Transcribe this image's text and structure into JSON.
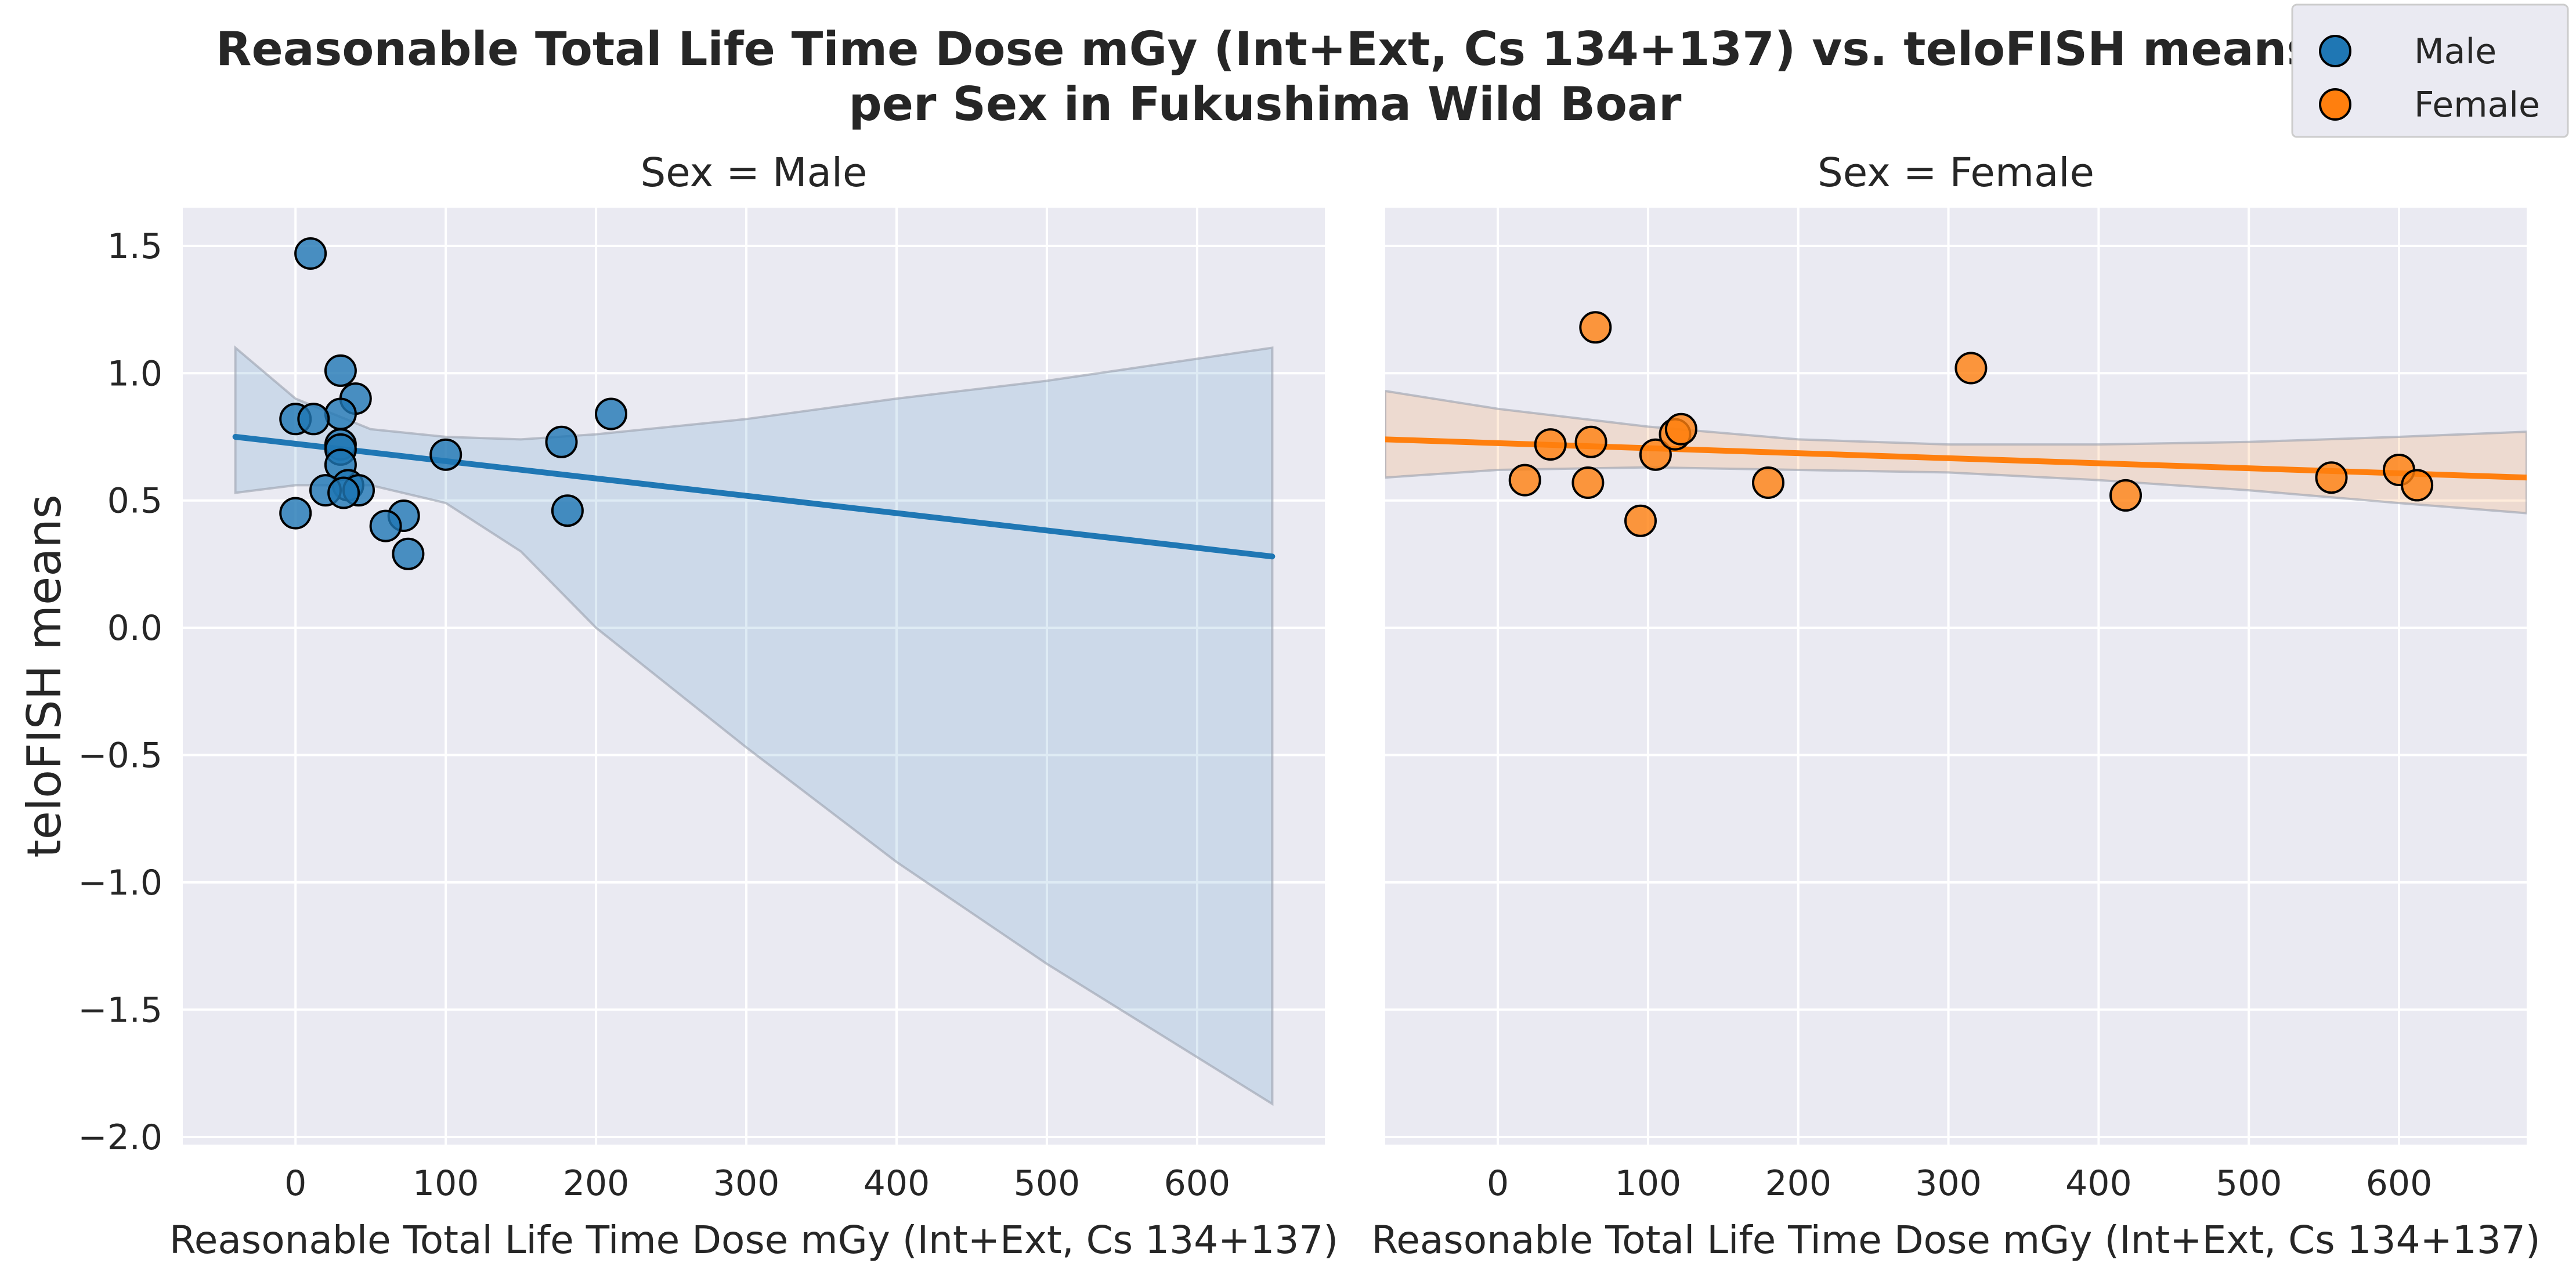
{
  "figure": {
    "title_lines": [
      "Reasonable Total Life Time Dose mGy (Int+Ext, Cs 134+137) vs. teloFISH means",
      "per Sex in Fukushima Wild Boar"
    ],
    "legend": [
      {
        "label": "Male",
        "color": "#1f77b4"
      },
      {
        "label": "Female",
        "color": "#ff7f0e"
      }
    ]
  },
  "chart_data": [
    {
      "type": "scatter",
      "title": "Sex = Male",
      "xlabel": "Reasonable Total Life Time Dose mGy (Int+Ext, Cs 134+137)",
      "ylabel": "teloFISH means",
      "xlim": [
        -75,
        685
      ],
      "ylim": [
        -2.03,
        1.65
      ],
      "xticks": [
        0,
        100,
        200,
        300,
        400,
        500,
        600
      ],
      "yticks": [
        1.5,
        1.0,
        0.5,
        0.0,
        -0.5,
        -1.0,
        -1.5,
        -2.0
      ],
      "ytick_labels": [
        "1.5",
        "1.0",
        "0.5",
        "0.0",
        "−0.5",
        "−1.0",
        "−1.5",
        "−2.0"
      ],
      "grid": true,
      "color": "#1f77b4",
      "points": [
        {
          "x": 10,
          "y": 1.47
        },
        {
          "x": 30,
          "y": 1.01
        },
        {
          "x": 40,
          "y": 0.9
        },
        {
          "x": 30,
          "y": 0.84
        },
        {
          "x": 0,
          "y": 0.82
        },
        {
          "x": 12,
          "y": 0.82
        },
        {
          "x": 30,
          "y": 0.72
        },
        {
          "x": 30,
          "y": 0.7
        },
        {
          "x": 30,
          "y": 0.64
        },
        {
          "x": 35,
          "y": 0.56
        },
        {
          "x": 20,
          "y": 0.54
        },
        {
          "x": 42,
          "y": 0.54
        },
        {
          "x": 32,
          "y": 0.53
        },
        {
          "x": 0,
          "y": 0.45
        },
        {
          "x": 72,
          "y": 0.44
        },
        {
          "x": 60,
          "y": 0.4
        },
        {
          "x": 75,
          "y": 0.29
        },
        {
          "x": 100,
          "y": 0.68
        },
        {
          "x": 177,
          "y": 0.73
        },
        {
          "x": 210,
          "y": 0.84
        },
        {
          "x": 181,
          "y": 0.46
        }
      ],
      "regression": {
        "x": [
          -40,
          650
        ],
        "y": [
          0.75,
          0.28
        ]
      },
      "ci_band": {
        "x": [
          -40,
          0,
          50,
          100,
          150,
          200,
          300,
          400,
          500,
          650
        ],
        "upper": [
          1.1,
          0.9,
          0.78,
          0.75,
          0.74,
          0.76,
          0.82,
          0.9,
          0.97,
          1.1
        ],
        "lower": [
          0.53,
          0.56,
          0.56,
          0.49,
          0.3,
          0.0,
          -0.47,
          -0.92,
          -1.32,
          -1.87
        ]
      }
    },
    {
      "type": "scatter",
      "title": "Sex = Female",
      "xlabel": "Reasonable Total Life Time Dose mGy (Int+Ext, Cs 134+137)",
      "ylabel": "",
      "xlim": [
        -75,
        685
      ],
      "ylim": [
        -2.03,
        1.65
      ],
      "xticks": [
        0,
        100,
        200,
        300,
        400,
        500,
        600
      ],
      "grid": true,
      "color": "#ff7f0e",
      "points": [
        {
          "x": 65,
          "y": 1.18
        },
        {
          "x": 315,
          "y": 1.02
        },
        {
          "x": 18,
          "y": 0.58
        },
        {
          "x": 35,
          "y": 0.72
        },
        {
          "x": 62,
          "y": 0.73
        },
        {
          "x": 60,
          "y": 0.57
        },
        {
          "x": 95,
          "y": 0.42
        },
        {
          "x": 105,
          "y": 0.68
        },
        {
          "x": 118,
          "y": 0.76
        },
        {
          "x": 122,
          "y": 0.78
        },
        {
          "x": 180,
          "y": 0.57
        },
        {
          "x": 418,
          "y": 0.52
        },
        {
          "x": 555,
          "y": 0.59
        },
        {
          "x": 600,
          "y": 0.62
        },
        {
          "x": 612,
          "y": 0.56
        }
      ],
      "regression": {
        "x": [
          -75,
          685
        ],
        "y": [
          0.74,
          0.59
        ]
      },
      "ci_band": {
        "x": [
          -75,
          0,
          100,
          200,
          300,
          400,
          500,
          600,
          685
        ],
        "upper": [
          0.93,
          0.86,
          0.79,
          0.74,
          0.72,
          0.72,
          0.73,
          0.75,
          0.77
        ],
        "lower": [
          0.59,
          0.62,
          0.63,
          0.62,
          0.61,
          0.58,
          0.54,
          0.49,
          0.45
        ]
      }
    }
  ]
}
